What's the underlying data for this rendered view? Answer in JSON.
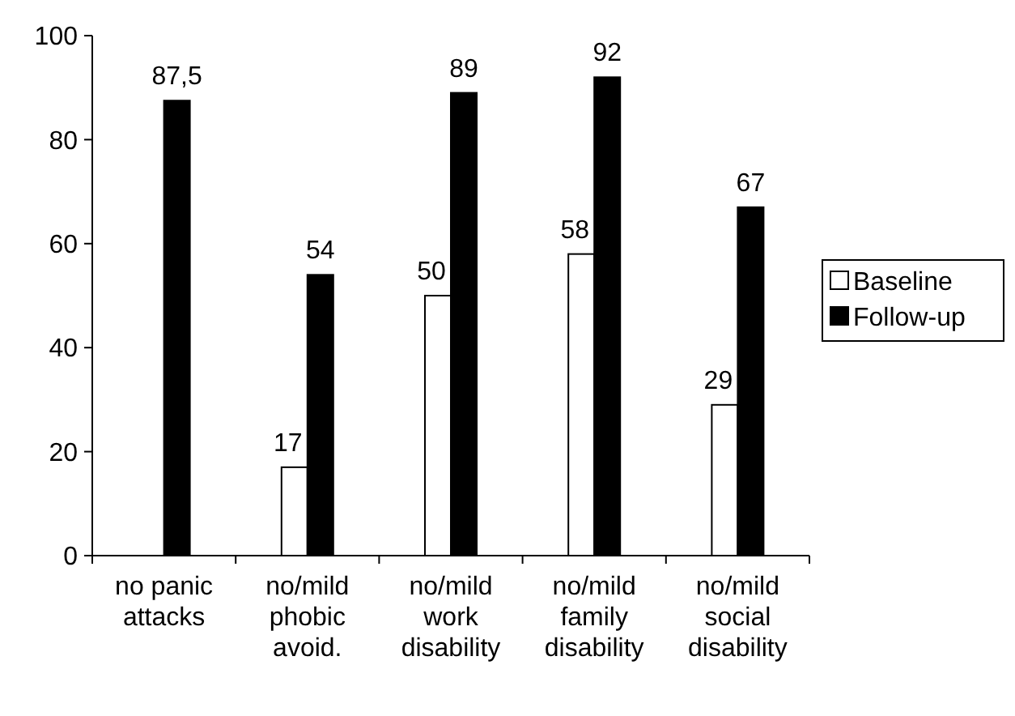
{
  "chart_data": {
    "type": "bar",
    "categories": [
      "no panic attacks",
      "no/mild phobic avoid.",
      "no/mild work disability",
      "no/mild family disability",
      "no/mild social disability"
    ],
    "series": [
      {
        "name": "Baseline",
        "color": "#ffffff",
        "values": [
          null,
          17,
          50,
          58,
          29
        ],
        "value_labels": [
          null,
          "17",
          "50",
          "58",
          "29"
        ]
      },
      {
        "name": "Follow-up",
        "color": "#000000",
        "values": [
          87.5,
          54,
          89,
          92,
          67
        ],
        "value_labels": [
          "87,5",
          "54",
          "89",
          "92",
          "67"
        ]
      }
    ],
    "ylim": [
      0,
      100
    ],
    "yticks": [
      0,
      20,
      40,
      60,
      80,
      100
    ],
    "legend": "right",
    "grid": false
  }
}
